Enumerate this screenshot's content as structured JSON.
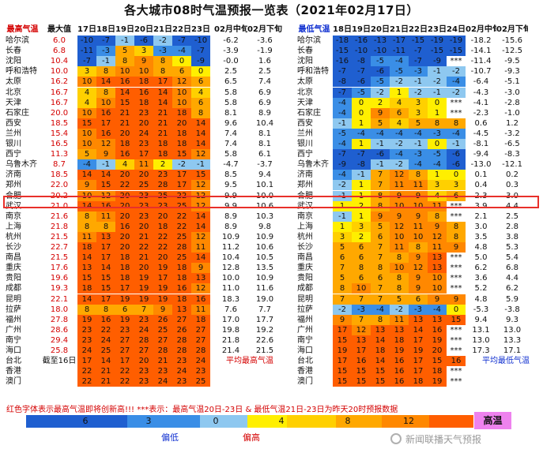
{
  "title": "各大城市08时气温预报一览表（2021年02月17日）",
  "colors": {
    "minus_gt6": "#1f5fd0",
    "minus_3_6": "#3a8ee6",
    "minus_0_3": "#8ec8f0",
    "plus_0_2": "#ffef00",
    "plus_2_4": "#ffd000",
    "plus_4_8": "#ffa800",
    "plus_8_12": "#ff8800",
    "plus_gt12": "#ff5e00",
    "record": "#ee82ee",
    "header_high": "#d40000",
    "header_low": "#1030d0"
  },
  "note": "红色字体表示最高气温即将创新高!!! ***表示：最高气温20日-23日 & 最低气温21日-23日为昨天20时预报数据",
  "legend": {
    "ticks": [
      "6",
      "3",
      "0",
      "4",
      "8",
      "12"
    ],
    "below_label": "偏低",
    "above_label": "偏高",
    "record_label": "高温"
  },
  "watermark": "新闻联播天气预报",
  "chart_data": [
    {
      "type": "table",
      "name": "最高气温",
      "col_headers": [
        "最高气温",
        "最大值",
        "17日",
        "18日",
        "19日",
        "20日",
        "21日",
        "22日",
        "23日",
        "02月中旬",
        "02月下旬"
      ],
      "summary_label": "平均最高气温",
      "summary_value_note": "截至16日",
      "cities": [
        "哈尔滨",
        "长春",
        "沈阳",
        "呼和浩特",
        "太原",
        "北京",
        "天津",
        "石家庄",
        "西安",
        "兰州",
        "银川",
        "西宁",
        "乌鲁木齐",
        "济南",
        "郑州",
        "合肥",
        "武汉",
        "南京",
        "上海",
        "杭州",
        "长沙",
        "南昌",
        "重庆",
        "贵阳",
        "成都",
        "昆明",
        "拉萨",
        "福州",
        "广州",
        "南宁",
        "海口",
        "台北",
        "香港",
        "澳门"
      ],
      "max_values": [
        "6.0",
        "6.8",
        "10.4",
        "10.0",
        "16.2",
        "16.7",
        "16.7",
        "20.0",
        "18.5",
        "15.4",
        "16.5",
        "11.3",
        "8.7",
        "18.5",
        "22.0",
        "20.2",
        "21.0",
        "21.6",
        "21.8",
        "21.5",
        "22.7",
        "21.5",
        "17.6",
        "19.6",
        "19.3",
        "22.1",
        "18.0",
        "27.8",
        "28.6",
        "29.4",
        "25.8",
        "截至16日",
        "",
        ""
      ],
      "forecast": [
        [
          -10,
          -7,
          -1,
          -6,
          -2,
          -7,
          -10
        ],
        [
          -11,
          -3,
          5,
          3,
          -3,
          -4,
          -7
        ],
        [
          -7,
          -1,
          8,
          9,
          8,
          0,
          -9
        ],
        [
          3,
          8,
          10,
          10,
          8,
          6,
          0
        ],
        [
          10,
          14,
          16,
          18,
          17,
          12,
          6
        ],
        [
          4,
          8,
          14,
          16,
          14,
          10,
          4
        ],
        [
          4,
          10,
          15,
          18,
          14,
          10,
          6
        ],
        [
          10,
          16,
          21,
          23,
          21,
          18,
          8
        ],
        [
          15,
          17,
          21,
          20,
          21,
          20,
          14
        ],
        [
          10,
          16,
          20,
          24,
          21,
          18,
          14
        ],
        [
          10,
          12,
          18,
          23,
          18,
          18,
          14
        ],
        [
          5,
          9,
          16,
          17,
          18,
          15,
          12
        ],
        [
          -4,
          -1,
          4,
          11,
          2,
          -2,
          -1
        ],
        [
          14,
          14,
          20,
          20,
          23,
          17,
          15
        ],
        [
          9,
          15,
          22,
          25,
          28,
          17,
          12
        ],
        [
          10,
          12,
          20,
          23,
          25,
          22,
          12
        ],
        [
          14,
          16,
          20,
          23,
          23,
          25,
          12
        ],
        [
          8,
          11,
          20,
          23,
          20,
          22,
          14
        ],
        [
          8,
          8,
          16,
          20,
          18,
          22,
          14
        ],
        [
          11,
          13,
          20,
          21,
          22,
          25,
          12
        ],
        [
          18,
          17,
          20,
          22,
          22,
          28,
          11
        ],
        [
          14,
          17,
          18,
          21,
          20,
          25,
          14
        ],
        [
          13,
          14,
          18,
          20,
          19,
          18,
          9
        ],
        [
          15,
          15,
          18,
          19,
          17,
          18,
          13
        ],
        [
          18,
          15,
          17,
          19,
          19,
          16,
          12
        ],
        [
          14,
          17,
          19,
          19,
          19,
          18,
          16
        ],
        [
          8,
          8,
          6,
          7,
          9,
          13,
          11
        ],
        [
          19,
          16,
          19,
          23,
          26,
          27,
          18
        ],
        [
          23,
          22,
          23,
          24,
          25,
          26,
          27
        ],
        [
          23,
          24,
          27,
          28,
          27,
          28,
          27
        ],
        [
          24,
          25,
          27,
          27,
          28,
          28,
          28
        ],
        [
          17,
          14,
          17,
          20,
          21,
          23,
          24
        ],
        [
          22,
          21,
          22,
          23,
          23,
          24,
          23
        ],
        [
          22,
          21,
          22,
          23,
          24,
          23,
          25
        ]
      ],
      "mid": [
        "-6.2",
        "-3.9",
        "-0.0",
        "2.5",
        "6.5",
        "5.8",
        "5.8",
        "8.1",
        "9.6",
        "7.4",
        "7.4",
        "5.8",
        "-4.7",
        "8.5",
        "9.5",
        "9.9",
        "9.9",
        "8.9",
        "8.9",
        "10.9",
        "11.2",
        "10.4",
        "12.8",
        "10.0",
        "11.0",
        "18.3",
        "7.6",
        "17.0",
        "19.8",
        "21.8",
        "21.4",
        "",
        "",
        ""
      ],
      "late": [
        "-3.6",
        "-1.9",
        "1.6",
        "2.5",
        "7.4",
        "6.9",
        "6.9",
        "8.9",
        "10.4",
        "8.1",
        "8.1",
        "6.1",
        "-3.7",
        "9.4",
        "10.1",
        "10.0",
        "10.6",
        "10.3",
        "9.8",
        "10.9",
        "10.6",
        "10.5",
        "13.5",
        "10.9",
        "11.6",
        "19.0",
        "7.7",
        "17.7",
        "19.2",
        "22.6",
        "21.5",
        "",
        "",
        ""
      ]
    },
    {
      "type": "table",
      "name": "最低气温",
      "col_headers": [
        "最低气温",
        "18日",
        "19日",
        "20日",
        "21日",
        "22日",
        "23日",
        "24日",
        "02月中旬",
        "02月下旬"
      ],
      "summary_label": "平均最低气温",
      "cities": [
        "哈尔滨",
        "长春",
        "沈阳",
        "呼和浩特",
        "太原",
        "北京",
        "天津",
        "石家庄",
        "西安",
        "兰州",
        "银川",
        "西宁",
        "乌鲁木齐",
        "济南",
        "郑州",
        "合肥",
        "武汉",
        "南京",
        "上海",
        "杭州",
        "长沙",
        "南昌",
        "重庆",
        "贵阳",
        "成都",
        "昆明",
        "拉萨",
        "福州",
        "广州",
        "南宁",
        "海口",
        "台北",
        "香港",
        "澳门"
      ],
      "forecast": [
        [
          "-18",
          "-16",
          "-13",
          "-17",
          "-15",
          "-19",
          "-19"
        ],
        [
          "-15",
          "-10",
          "-10",
          "-11",
          "-7",
          "-15",
          "-15"
        ],
        [
          "-16",
          "-8",
          "-5",
          "-4",
          "-7",
          "-9",
          "***"
        ],
        [
          "-7",
          "-7",
          "-6",
          "-5",
          "-3",
          "-1",
          "-2"
        ],
        [
          "-8",
          "-6",
          "-5",
          "-2",
          "-1",
          "-2",
          "-4"
        ],
        [
          "-7",
          "-5",
          "-2",
          "1",
          "-2",
          "-1",
          "-2"
        ],
        [
          "-4",
          "0",
          "2",
          "4",
          "3",
          "0",
          "***"
        ],
        [
          "-4",
          "0",
          "9",
          "6",
          "3",
          "1",
          "***"
        ],
        [
          "-1",
          "1",
          "5",
          "4",
          "5",
          "8",
          "8"
        ],
        [
          "-5",
          "-4",
          "-4",
          "-4",
          "-4",
          "-3",
          "-4"
        ],
        [
          "-4",
          "1",
          "-1",
          "-2",
          "-1",
          "0",
          "-1"
        ],
        [
          "-7",
          "-7",
          "-6",
          "-4",
          "-3",
          "-5",
          "-6"
        ],
        [
          "-9",
          "-8",
          "-1",
          "-2",
          "-4",
          "-4",
          "-6"
        ],
        [
          "-4",
          "-1",
          "7",
          "12",
          "8",
          "1",
          "0"
        ],
        [
          "-2",
          "1",
          "7",
          "11",
          "11",
          "3",
          "3"
        ],
        [
          "-1",
          "1",
          "8",
          "9",
          "9",
          "4",
          "6"
        ],
        [
          "1",
          "2",
          "8",
          "10",
          "10",
          "11",
          "***"
        ],
        [
          "-1",
          "1",
          "9",
          "9",
          "9",
          "8",
          "***"
        ],
        [
          "1",
          "3",
          "5",
          "12",
          "11",
          "9",
          "8"
        ],
        [
          "3",
          "2",
          "6",
          "10",
          "10",
          "12",
          "8"
        ],
        [
          "5",
          "6",
          "7",
          "11",
          "8",
          "11",
          "9"
        ],
        [
          "6",
          "6",
          "7",
          "8",
          "9",
          "13",
          "***"
        ],
        [
          "7",
          "8",
          "8",
          "10",
          "12",
          "13",
          "***"
        ],
        [
          "5",
          "6",
          "6",
          "8",
          "9",
          "10",
          "***"
        ],
        [
          "8",
          "10",
          "7",
          "8",
          "9",
          "10",
          "***"
        ],
        [
          "7",
          "7",
          "7",
          "5",
          "6",
          "9",
          "9"
        ],
        [
          "-2",
          "-3",
          "-4",
          "-2",
          "-3",
          "-4",
          "0"
        ],
        [
          "9",
          "7",
          "8",
          "11",
          "13",
          "13",
          "15"
        ],
        [
          "17",
          "12",
          "13",
          "13",
          "14",
          "16",
          "***"
        ],
        [
          "15",
          "13",
          "14",
          "18",
          "17",
          "19",
          "***"
        ],
        [
          "19",
          "17",
          "18",
          "19",
          "19",
          "20",
          "***"
        ],
        [
          "17",
          "16",
          "14",
          "16",
          "17",
          "15",
          "16"
        ],
        [
          "15",
          "15",
          "15",
          "16",
          "17",
          "18",
          "***"
        ],
        [
          "15",
          "15",
          "15",
          "16",
          "18",
          "19",
          "***"
        ]
      ],
      "mid": [
        "-18.2",
        "-14.1",
        "-11.4",
        "-10.7",
        "-6.4",
        "-4.3",
        "-4.1",
        "-2.3",
        "0.6",
        "-4.5",
        "-8.1",
        "-9.4",
        "-13.0",
        "0.1",
        "0.4",
        "2.3",
        "3.9",
        "2.1",
        "3.0",
        "3.5",
        "4.8",
        "5.0",
        "6.2",
        "3.6",
        "5.2",
        "4.8",
        "-5.3",
        "9.4",
        "13.1",
        "13.0",
        "17.3",
        "",
        "",
        ""
      ],
      "late": [
        "-15.6",
        "-12.5",
        "-9.5",
        "-9.3",
        "-5.1",
        "-3.0",
        "-2.8",
        "-1.0",
        "1.2",
        "-3.2",
        "-6.5",
        "-8.3",
        "-12.1",
        "0.2",
        "0.3",
        "3.0",
        "4.4",
        "2.5",
        "2.8",
        "3.8",
        "5.3",
        "5.4",
        "6.8",
        "4.4",
        "6.2",
        "5.9",
        "-3.8",
        "9.3",
        "13.0",
        "13.3",
        "17.1",
        "",
        "",
        ""
      ]
    }
  ]
}
